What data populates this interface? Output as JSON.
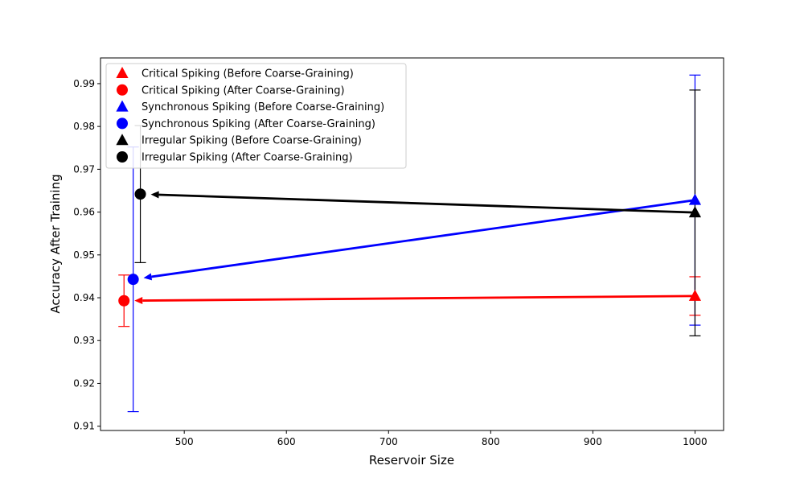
{
  "chart_data": {
    "type": "scatter",
    "title": "",
    "xlabel": "Reservoir Size",
    "ylabel": "Accuracy After Training",
    "xlim": [
      418,
      1028
    ],
    "ylim": [
      0.909,
      0.996
    ],
    "xticks": [
      500,
      600,
      700,
      800,
      900,
      1000
    ],
    "yticks": [
      0.91,
      0.92,
      0.93,
      0.94,
      0.95,
      0.96,
      0.97,
      0.98,
      0.99
    ],
    "grid": false,
    "legend_position": "top-left",
    "series": [
      {
        "name": "Critical Spiking (Before Coarse-Graining)",
        "color": "#ff0000",
        "marker": "triangle",
        "x": 1000,
        "y": 0.9404,
        "yerr_low": 0.9359,
        "yerr_high": 0.9449
      },
      {
        "name": "Critical Spiking (After Coarse-Graining)",
        "color": "#ff0000",
        "marker": "circle",
        "x": 441,
        "y": 0.9393,
        "yerr_low": 0.9333,
        "yerr_high": 0.9453
      },
      {
        "name": "Synchronous Spiking (Before Coarse-Graining)",
        "color": "#0000ff",
        "marker": "triangle",
        "x": 1000,
        "y": 0.9628,
        "yerr_low": 0.9336,
        "yerr_high": 0.992
      },
      {
        "name": "Synchronous Spiking (After Coarse-Graining)",
        "color": "#0000ff",
        "marker": "circle",
        "x": 450,
        "y": 0.9443,
        "yerr_low": 0.9134,
        "yerr_high": 0.9752
      },
      {
        "name": "Irregular Spiking (Before Coarse-Graining)",
        "color": "#000000",
        "marker": "triangle",
        "x": 1000,
        "y": 0.9599,
        "yerr_low": 0.9311,
        "yerr_high": 0.9885
      },
      {
        "name": "Irregular Spiking (After Coarse-Graining)",
        "color": "#000000",
        "marker": "circle",
        "x": 457,
        "y": 0.9642,
        "yerr_low": 0.9482,
        "yerr_high": 0.9802
      }
    ],
    "arrows": [
      {
        "from": [
          1000,
          0.9404
        ],
        "to": [
          441,
          0.9393
        ],
        "color": "#ff0000"
      },
      {
        "from": [
          1000,
          0.9628
        ],
        "to": [
          450,
          0.9443
        ],
        "color": "#0000ff"
      },
      {
        "from": [
          1000,
          0.9599
        ],
        "to": [
          457,
          0.9642
        ],
        "color": "#000000"
      }
    ]
  }
}
